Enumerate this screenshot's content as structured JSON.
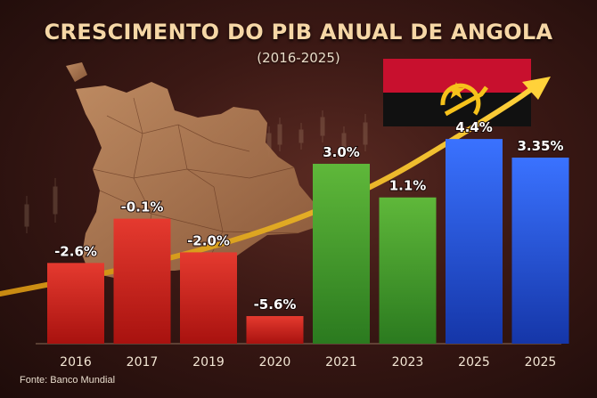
{
  "title": "CRESCIMENTO DO PIB ANUAL DE ANGOLA",
  "subtitle": "(2016-2025)",
  "source": "Fonte: Banco Mundial",
  "colors": {
    "negative": "#d4201c",
    "positive": "#3f9a2c",
    "projection": "#1f4fd8",
    "arrow": "#f2b21e",
    "flag_red": "#c8102e",
    "flag_black": "#111111",
    "flag_emblem": "#f6c21b"
  },
  "chart_data": {
    "type": "bar",
    "categories": [
      "2016",
      "2017",
      "2019",
      "2020",
      "2021",
      "2023",
      "2025",
      "2025"
    ],
    "values": [
      -2.6,
      -0.1,
      -2.0,
      -5.6,
      3.0,
      1.1,
      4.4,
      3.35
    ],
    "value_labels": [
      "-2.6%",
      "-0.1%",
      "-2.0%",
      "-5.6%",
      "3.0%",
      "1.1%",
      "4.4%",
      "3.35%"
    ],
    "bar_colors": [
      "negative",
      "negative",
      "negative",
      "negative",
      "positive",
      "positive",
      "projection",
      "projection"
    ],
    "title": "CRESCIMENTO DO PIB ANUAL DE ANGOLA",
    "subtitle": "(2016-2025)",
    "xlabel": "",
    "ylabel": "",
    "grid": false,
    "legend": "none"
  }
}
